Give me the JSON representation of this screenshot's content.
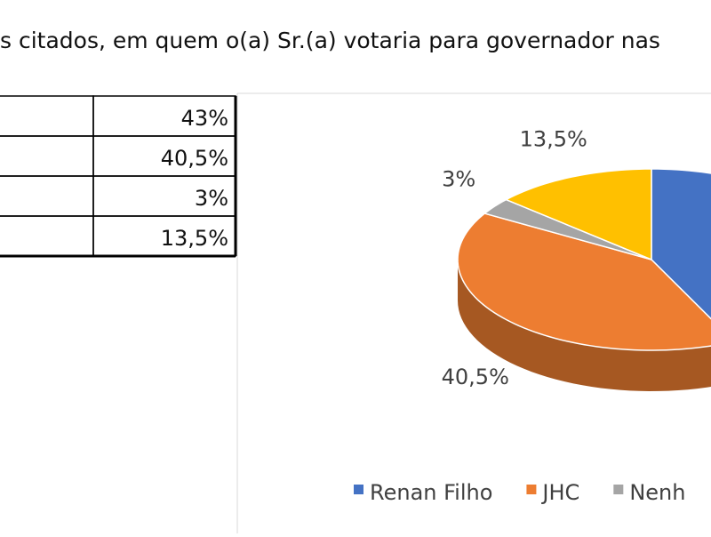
{
  "header": {
    "title": "s citados, em quem o(a) Sr.(a) votaria para governador nas"
  },
  "table": {
    "rows": [
      [
        "43%"
      ],
      [
        "40,5%"
      ],
      [
        "3%"
      ],
      [
        "13,5%"
      ]
    ]
  },
  "chart_data": {
    "type": "pie",
    "categories": [
      "Renan Filho",
      "JHC",
      "Nenh",
      null
    ],
    "values": [
      43,
      40.5,
      3,
      13.5
    ],
    "value_labels": [
      null,
      "40,5%",
      "3%",
      "13,5%"
    ],
    "colors": [
      "#4472c4",
      "#ed7d31",
      "#a5a5a5",
      "#ffc000"
    ],
    "three_d": true
  }
}
